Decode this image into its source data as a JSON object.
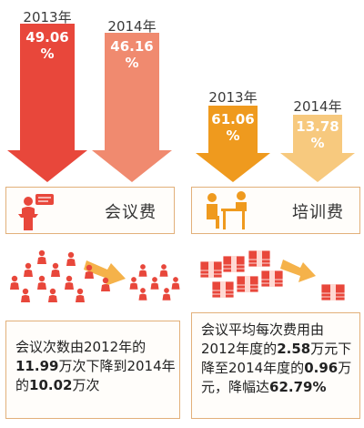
{
  "colors": {
    "red_dark": "#e8473b",
    "red_light": "#f08a6f",
    "orange_dark": "#ef9a1e",
    "orange_light": "#f7c97e",
    "border": "#e2b07a"
  },
  "chart_data": [
    {
      "type": "bar",
      "categories": [
        "2013年",
        "2014年"
      ],
      "values": [
        49.06,
        46.16
      ],
      "labels": [
        "49.06\n%",
        "46.16\n%"
      ],
      "label_top": "会议费"
    },
    {
      "type": "bar",
      "categories": [
        "2013年",
        "2014年"
      ],
      "values": [
        61.06,
        13.78
      ],
      "labels": [
        "61.06\n%",
        "13.78\n%"
      ],
      "label_top": "培训费"
    }
  ],
  "panels": {
    "left": {
      "title": "会议费",
      "desc_parts": [
        "会议次数由2012年的",
        "11.99",
        "万次下降到2014年的",
        "10.02",
        "万次"
      ]
    },
    "right": {
      "title": "培训费",
      "desc_parts": [
        "会议平均每次费用由2012年度的",
        "2.58",
        "万元下降至2014年度的",
        "0.96",
        "万元，降幅达",
        "62.79%"
      ]
    }
  },
  "icons": {
    "left_panel": "speaker-at-podium-icon",
    "right_panel": "training-desk-icon",
    "people": "crowd-people-icon",
    "money": "cash-stack-icon",
    "arrow": "decrease-arrow-icon"
  }
}
